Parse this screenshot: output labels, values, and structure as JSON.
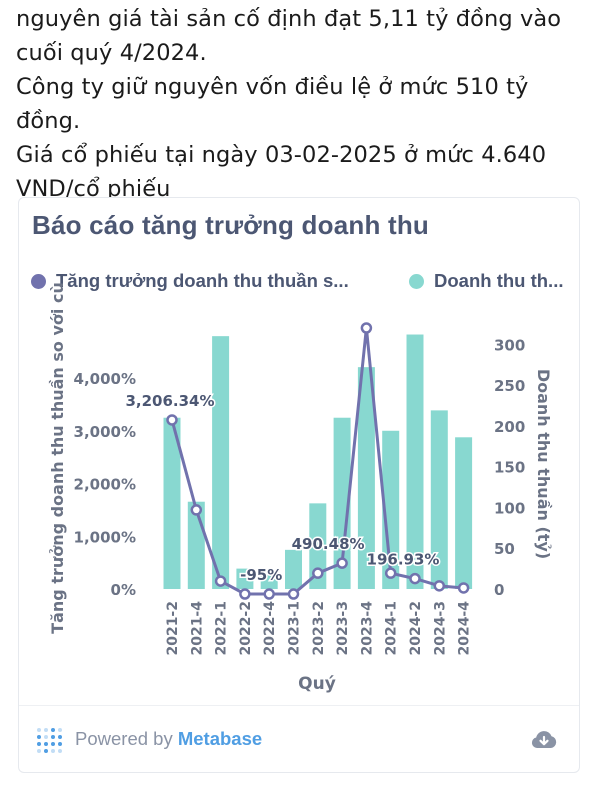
{
  "article": {
    "line1": "nguyên giá tài sản cố định đạt 5,11 tỷ đồng vào",
    "line2": "cuối quý 4/2024.",
    "line3": "Công ty giữ nguyên vốn điều lệ ở mức 510 tỷ đồng.",
    "line4": "Giá cổ phiếu tại ngày 03-02-2025 ở mức 4.640",
    "line5": "VND/cổ phiếu"
  },
  "card": {
    "title": "Báo cáo tăng trưởng doanh thu",
    "powered_prefix": "Powered by ",
    "powered_brand": "Metabase"
  },
  "chart_data": {
    "type": "bar+line",
    "title": "Báo cáo tăng trưởng doanh thu",
    "xlabel": "Quý",
    "ylabel_left": "Tăng trưởng doanh thu thuần so với cù",
    "ylabel_right": "Doanh thu thuần (tỷ)",
    "categories": [
      "2021-2",
      "2021-4",
      "2022-1",
      "2022-2",
      "2022-4",
      "2023-1",
      "2023-2",
      "2023-3",
      "2023-4",
      "2024-1",
      "2024-2",
      "2024-3",
      "2024-4"
    ],
    "series": [
      {
        "name": "Tăng trưởng doanh thu thuần s...",
        "type": "line",
        "axis": "left",
        "color": "#7172ad",
        "values": [
          3206.34,
          1500,
          150,
          -95,
          -95,
          -95,
          300,
          490.48,
          4950,
          300,
          196.93,
          60,
          20
        ]
      },
      {
        "name": "Doanh thu th...",
        "type": "bar",
        "axis": "right",
        "color": "#88d8d0",
        "values": [
          210,
          107,
          310,
          25,
          22,
          48,
          105,
          210,
          272,
          194,
          312,
          219,
          186
        ]
      }
    ],
    "point_labels": [
      {
        "index": 0,
        "text": "3,206.34%"
      },
      {
        "index": 4,
        "text": "-95%"
      },
      {
        "index": 7,
        "text": "490.48%"
      },
      {
        "index": 10,
        "text": "196.93%"
      }
    ],
    "left_ticks": [
      "0%",
      "1,000%",
      "2,000%",
      "3,000%",
      "4,000%"
    ],
    "left_tick_values": [
      0,
      1000,
      2000,
      3000,
      4000
    ],
    "right_ticks": [
      "0",
      "50",
      "100",
      "150",
      "200",
      "250",
      "300"
    ],
    "right_tick_values": [
      0,
      50,
      100,
      150,
      200,
      250,
      300
    ],
    "ylim_left": [
      -100,
      4950
    ],
    "ylim_right": [
      0,
      320
    ]
  }
}
